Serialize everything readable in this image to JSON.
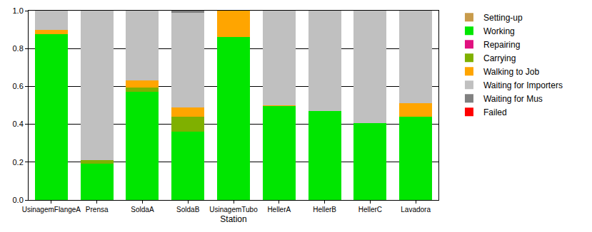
{
  "chart_data": {
    "type": "bar",
    "stacked": true,
    "x_label": "Station",
    "categories": [
      "UsinagemFlangeA",
      "Prensa",
      "SoldaA",
      "SoldaB",
      "UsinagemTubo",
      "HellerA",
      "HellerB",
      "HellerC",
      "Lavadora"
    ],
    "series": [
      {
        "name": "Setting-up",
        "color": "#c89b4b",
        "values": [
          0,
          0,
          0,
          0,
          0,
          0,
          0,
          0,
          0
        ]
      },
      {
        "name": "Working",
        "color": "#00e600",
        "values": [
          0.875,
          0.19,
          0.57,
          0.36,
          0.86,
          0.495,
          0.47,
          0.405,
          0.44
        ]
      },
      {
        "name": "Repairing",
        "color": "#e0107f",
        "values": [
          0,
          0,
          0,
          0,
          0,
          0,
          0,
          0,
          0
        ]
      },
      {
        "name": "Carrying",
        "color": "#7fb000",
        "values": [
          0,
          0.02,
          0.025,
          0.08,
          0,
          0,
          0,
          0,
          0
        ]
      },
      {
        "name": "Walking to Job",
        "color": "#ffa500",
        "values": [
          0.025,
          0,
          0.035,
          0.05,
          0.14,
          0.005,
          0,
          0,
          0.07
        ]
      },
      {
        "name": "Waiting for Importers",
        "color": "#c0c0c0",
        "values": [
          0.1,
          0.79,
          0.37,
          0.5,
          0,
          0.5,
          0.53,
          0.595,
          0.49
        ]
      },
      {
        "name": "Waiting for Mus",
        "color": "#808080",
        "values": [
          0,
          0,
          0,
          0.01,
          0,
          0,
          0,
          0,
          0
        ]
      },
      {
        "name": "Failed",
        "color": "#ff0000",
        "values": [
          0,
          0,
          0,
          0,
          0,
          0,
          0,
          0,
          0
        ]
      }
    ],
    "ylim": [
      0,
      1
    ],
    "yticks": [
      {
        "value": 0,
        "label": "0.0"
      },
      {
        "value": 0.2,
        "label": "0.2"
      },
      {
        "value": 0.4,
        "label": "0.4"
      },
      {
        "value": 0.6,
        "label": "0.6"
      },
      {
        "value": 0.8,
        "label": "0.8"
      },
      {
        "value": 1,
        "label": "1.0"
      }
    ],
    "grid": true,
    "legend": "top right"
  }
}
